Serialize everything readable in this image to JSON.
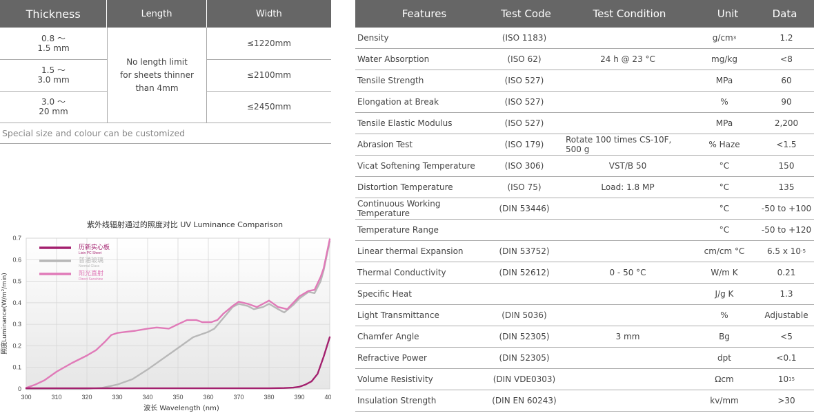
{
  "size_table": {
    "headers": {
      "thickness": "Thickness",
      "length": "Length",
      "width": "Width"
    },
    "rows": [
      {
        "thickness_1": "0.8 ～",
        "thickness_2": "1.5 mm",
        "width": "≤1220mm"
      },
      {
        "thickness_1": "1.5 ～",
        "thickness_2": "3.0 mm",
        "width": "≤2100mm"
      },
      {
        "thickness_1": "3.0 ～",
        "thickness_2": "20 mm",
        "width": "≤2450mm"
      }
    ],
    "length_lines": [
      "No length limit",
      "for sheets thinner",
      "than 4mm"
    ],
    "note": "Special size and colour can be customized"
  },
  "properties": {
    "headers": {
      "features": "Features",
      "code": "Test Code",
      "condition": "Test Condition",
      "unit": "Unit",
      "data": "Data"
    },
    "rows": [
      {
        "feature": "Density",
        "code": "(ISO 1183)",
        "condition": "",
        "unit": "g/cm",
        "unit_sup": "3",
        "data": "1.2",
        "data_sup": ""
      },
      {
        "feature": "Water Absorption",
        "code": "(ISO 62)",
        "condition": "24 h @ 23 °C",
        "unit": "mg/kg",
        "unit_sup": "",
        "data": "<8",
        "data_sup": ""
      },
      {
        "feature": "Tensile Strength",
        "code": "(ISO 527)",
        "condition": "",
        "unit": "MPa",
        "unit_sup": "",
        "data": "60",
        "data_sup": ""
      },
      {
        "feature": "Elongation at Break",
        "code": "(ISO 527)",
        "condition": "",
        "unit": "%",
        "unit_sup": "",
        "data": "90",
        "data_sup": ""
      },
      {
        "feature": "Tensile Elastic Modulus",
        "code": "(ISO 527)",
        "condition": "",
        "unit": "MPa",
        "unit_sup": "",
        "data": "2,200",
        "data_sup": ""
      },
      {
        "feature": "Abrasion Test",
        "code": "(ISO 179)",
        "condition": "Rotate 100 times CS-10F, 500 g",
        "unit": "% Haze",
        "unit_sup": "",
        "data": "<1.5",
        "data_sup": ""
      },
      {
        "feature": "Vicat Softening Temperature",
        "code": "(ISO 306)",
        "condition": "VST/B 50",
        "unit": "°C",
        "unit_sup": "",
        "data": "150",
        "data_sup": ""
      },
      {
        "feature": "Distortion Temperature",
        "code": "(ISO 75)",
        "condition": "Load: 1.8 MP",
        "unit": "°C",
        "unit_sup": "",
        "data": "135",
        "data_sup": ""
      },
      {
        "feature": "Continuous Working Temperature",
        "code": "(DIN 53446)",
        "condition": "",
        "unit": "°C",
        "unit_sup": "",
        "data": "-50 to +100",
        "data_sup": ""
      },
      {
        "feature": "Temperature Range",
        "code": "",
        "condition": "",
        "unit": "°C",
        "unit_sup": "",
        "data": "-50 to +120",
        "data_sup": ""
      },
      {
        "feature": "Linear thermal Expansion",
        "code": "(DIN 53752)",
        "condition": "",
        "unit": "cm/cm °C",
        "unit_sup": "",
        "data": "6.5 x 10",
        "data_sup": "-5"
      },
      {
        "feature": "Thermal Conductivity",
        "code": "(DIN 52612)",
        "condition": "0 - 50 °C",
        "unit": "W/m K",
        "unit_sup": "",
        "data": "0.21",
        "data_sup": ""
      },
      {
        "feature": "Specific Heat",
        "code": "",
        "condition": "",
        "unit": "J/g K",
        "unit_sup": "",
        "data": "1.3",
        "data_sup": ""
      },
      {
        "feature": "Light Transmittance",
        "code": "(DIN 5036)",
        "condition": "",
        "unit": "%",
        "unit_sup": "",
        "data": "Adjustable",
        "data_sup": ""
      },
      {
        "feature": "Chamfer Angle",
        "code": "(DIN 52305)",
        "condition": "3 mm",
        "unit": "Bg",
        "unit_sup": "",
        "data": "<5",
        "data_sup": ""
      },
      {
        "feature": "Refractive Power",
        "code": "(DIN 52305)",
        "condition": "",
        "unit": "dpt",
        "unit_sup": "",
        "data": "<0.1",
        "data_sup": ""
      },
      {
        "feature": "Volume Resistivity",
        "code": "(DIN VDE0303)",
        "condition": "",
        "unit": "Ωcm",
        "unit_sup": "",
        "data": "10",
        "data_sup": "15"
      },
      {
        "feature": "Insulation Strength",
        "code": "(DIN EN 60243)",
        "condition": "",
        "unit": "kv/mm",
        "unit_sup": "",
        "data": ">30",
        "data_sup": ""
      }
    ]
  },
  "chart_data": {
    "type": "line",
    "title": "紫外线辐射通过的照度对比 UV Luminance Comparison",
    "xlabel": "波长 Wavelength (nm)",
    "ylabel": "照度Luminance(W/m²/min)",
    "xlim": [
      300,
      400
    ],
    "ylim": [
      0,
      0.7
    ],
    "xticks": [
      300,
      310,
      320,
      330,
      340,
      350,
      360,
      370,
      380,
      390,
      400
    ],
    "yticks": [
      0,
      0.1,
      0.2,
      0.3,
      0.4,
      0.5,
      0.6,
      0.7
    ],
    "legend_position": "top-left",
    "grid": true,
    "series": [
      {
        "name": "历新实心板",
        "name_en": "Lixin PC Sheet",
        "color": "#a3206e",
        "x": [
          300,
          310,
          320,
          330,
          340,
          350,
          360,
          370,
          380,
          385,
          388,
          390,
          392,
          394,
          396,
          398,
          400
        ],
        "y": [
          0.003,
          0.003,
          0.003,
          0.003,
          0.003,
          0.003,
          0.003,
          0.003,
          0.003,
          0.004,
          0.006,
          0.01,
          0.02,
          0.035,
          0.07,
          0.15,
          0.24
        ]
      },
      {
        "name": "普通玻璃",
        "name_en": "Normal Glass",
        "color": "#b8b8b8",
        "x": [
          300,
          320,
          325,
          330,
          335,
          340,
          345,
          350,
          355,
          360,
          362,
          365,
          368,
          370,
          373,
          375,
          378,
          380,
          383,
          385,
          388,
          390,
          393,
          395,
          397,
          398,
          400
        ],
        "y": [
          0.0,
          0.0,
          0.005,
          0.02,
          0.045,
          0.09,
          0.14,
          0.19,
          0.24,
          0.265,
          0.28,
          0.33,
          0.38,
          0.395,
          0.385,
          0.37,
          0.38,
          0.395,
          0.37,
          0.355,
          0.39,
          0.42,
          0.45,
          0.445,
          0.5,
          0.55,
          0.685
        ]
      },
      {
        "name": "阳光直射",
        "name_en": "Direct Sunshine",
        "color": "#e07ab8",
        "x": [
          300,
          303,
          306,
          310,
          315,
          320,
          323,
          326,
          328,
          330,
          333,
          336,
          340,
          343,
          347,
          350,
          353,
          356,
          358,
          361,
          363,
          365,
          368,
          370,
          373,
          376,
          380,
          383,
          386,
          390,
          393,
          395,
          397,
          398,
          400
        ],
        "y": [
          0.005,
          0.02,
          0.04,
          0.08,
          0.12,
          0.155,
          0.18,
          0.22,
          0.25,
          0.26,
          0.265,
          0.27,
          0.28,
          0.285,
          0.28,
          0.3,
          0.32,
          0.32,
          0.31,
          0.31,
          0.32,
          0.35,
          0.385,
          0.405,
          0.395,
          0.38,
          0.41,
          0.38,
          0.37,
          0.43,
          0.455,
          0.46,
          0.52,
          0.56,
          0.695
        ]
      }
    ]
  }
}
